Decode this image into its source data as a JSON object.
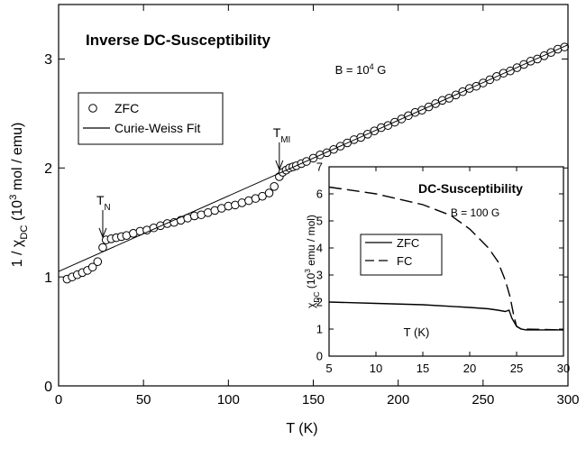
{
  "chart_data": [
    {
      "type": "scatter",
      "title": "Inverse DC-Susceptibility",
      "subtitle": [
        {
          "t": "B = 10"
        },
        {
          "t": "4",
          "sup": true
        },
        {
          "t": " G"
        }
      ],
      "xlabel": [
        {
          "t": "T (K)"
        }
      ],
      "ylabel": [
        {
          "t": "1 / χ"
        },
        {
          "t": "DC",
          "sub": true
        },
        {
          "t": " (10"
        },
        {
          "t": "3",
          "sup": true
        },
        {
          "t": " mol / emu)"
        }
      ],
      "xlim": [
        0,
        300
      ],
      "ylim": [
        0,
        3.5
      ],
      "xticks": [
        0,
        50,
        100,
        150,
        200,
        250,
        300
      ],
      "yticks": [
        0,
        1,
        2,
        3
      ],
      "annotations": [
        [
          {
            "t": "T"
          },
          {
            "t": "N",
            "sub": true
          }
        ],
        [
          {
            "t": "T"
          },
          {
            "t": "MI",
            "sub": true
          }
        ]
      ],
      "series": [
        {
          "name": "ZFC",
          "color": "#000000",
          "style": "markers",
          "x": [
            5,
            8,
            11,
            14,
            17,
            20,
            23,
            26,
            28,
            31,
            34,
            37,
            40,
            44,
            48,
            52,
            56,
            60,
            64,
            68,
            72,
            76,
            80,
            84,
            88,
            92,
            96,
            100,
            104,
            108,
            112,
            116,
            120,
            124,
            127,
            130,
            132,
            134,
            136,
            138,
            140,
            143,
            146,
            150,
            154,
            158,
            162,
            166,
            170,
            174,
            178,
            182,
            186,
            190,
            194,
            198,
            202,
            206,
            210,
            214,
            218,
            222,
            226,
            230,
            234,
            238,
            242,
            246,
            250,
            254,
            258,
            262,
            266,
            270,
            274,
            278,
            282,
            286,
            290,
            294,
            298
          ],
          "values": [
            0.98,
            1.0,
            1.02,
            1.04,
            1.06,
            1.09,
            1.14,
            1.27,
            1.34,
            1.35,
            1.36,
            1.37,
            1.38,
            1.4,
            1.42,
            1.43,
            1.45,
            1.47,
            1.49,
            1.5,
            1.52,
            1.54,
            1.56,
            1.57,
            1.59,
            1.61,
            1.63,
            1.65,
            1.66,
            1.68,
            1.7,
            1.72,
            1.74,
            1.77,
            1.83,
            1.92,
            1.96,
            1.98,
            2.0,
            2.01,
            2.02,
            2.04,
            2.06,
            2.09,
            2.12,
            2.14,
            2.17,
            2.2,
            2.23,
            2.26,
            2.28,
            2.31,
            2.34,
            2.37,
            2.39,
            2.42,
            2.45,
            2.48,
            2.51,
            2.53,
            2.56,
            2.59,
            2.62,
            2.64,
            2.67,
            2.7,
            2.73,
            2.75,
            2.78,
            2.81,
            2.84,
            2.87,
            2.89,
            2.92,
            2.95,
            2.98,
            3.0,
            3.03,
            3.06,
            3.09,
            3.11
          ]
        },
        {
          "name": "Curie-Weiss Fit",
          "color": "#000000",
          "style": "line",
          "x": [
            0,
            300
          ],
          "values": [
            1.05,
            3.13
          ]
        }
      ]
    },
    {
      "type": "line",
      "title": "DC-Susceptibility",
      "subtitle": [
        {
          "t": "B = 100 G"
        }
      ],
      "xlabel": [
        {
          "t": "T (K)"
        }
      ],
      "ylabel": [
        {
          "t": "χ"
        },
        {
          "t": "DC",
          "sub": true
        },
        {
          "t": " (10"
        },
        {
          "t": "3",
          "sup": true
        },
        {
          "t": " emu / mol)"
        }
      ],
      "xlim": [
        5,
        30
      ],
      "ylim": [
        0,
        7
      ],
      "xticks": [
        5,
        10,
        15,
        20,
        25,
        30
      ],
      "yticks": [
        0,
        1,
        2,
        3,
        4,
        5,
        6,
        7
      ],
      "series": [
        {
          "name": "ZFC",
          "color": "#000000",
          "style": "line",
          "x": [
            5,
            10,
            15,
            20,
            22,
            23,
            23.8,
            24.2,
            24.5,
            25,
            25.5,
            26,
            30
          ],
          "values": [
            2.0,
            1.95,
            1.9,
            1.8,
            1.75,
            1.7,
            1.65,
            1.7,
            1.4,
            1.1,
            1.0,
            0.97,
            0.97
          ]
        },
        {
          "name": "FC",
          "color": "#000000",
          "style": "dashed",
          "x": [
            5,
            10,
            15,
            18,
            20,
            22,
            23,
            23.8,
            24.3,
            24.7,
            25,
            25.5,
            30
          ],
          "values": [
            6.25,
            6.0,
            5.6,
            5.2,
            4.7,
            4.0,
            3.5,
            2.8,
            2.2,
            1.5,
            1.1,
            1.0,
            0.97
          ]
        }
      ]
    }
  ]
}
